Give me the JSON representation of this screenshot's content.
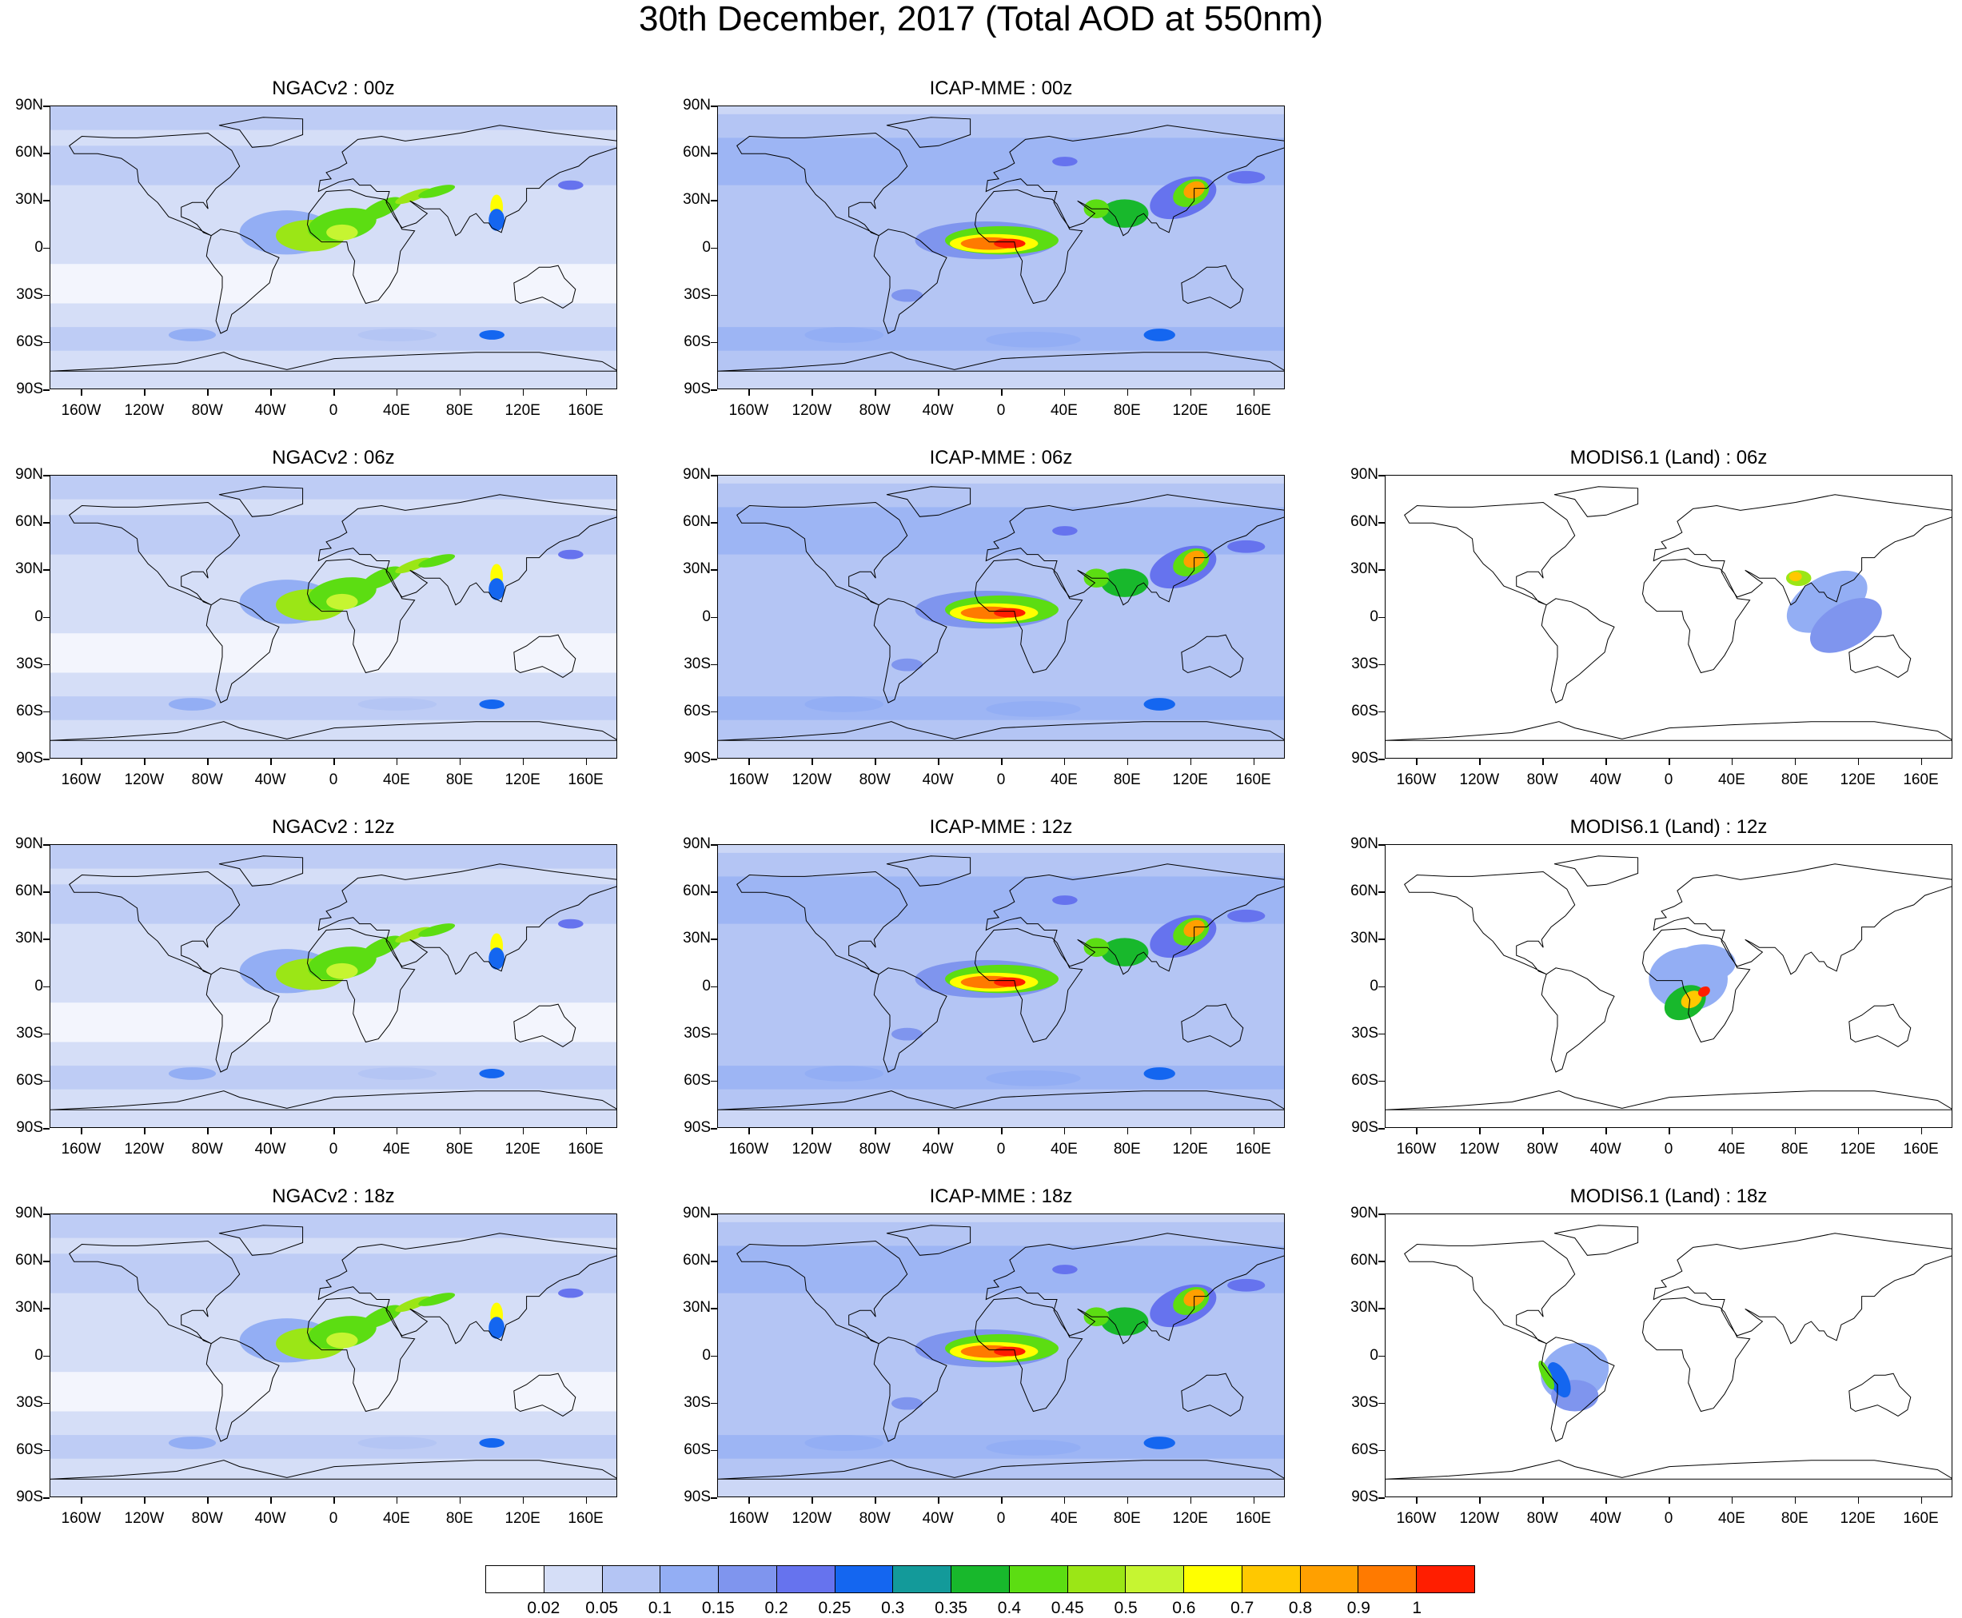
{
  "title": "30th December, 2017 (Total AOD at 550nm)",
  "lat_labels": [
    "90N",
    "60N",
    "30N",
    "0",
    "30S",
    "60S",
    "90S"
  ],
  "lon_labels": [
    "160W",
    "120W",
    "80W",
    "40W",
    "0",
    "40E",
    "80E",
    "120E",
    "160E"
  ],
  "panels": [
    {
      "id": "ngac-00",
      "title": "NGACv2 : 00z",
      "model": "ngac",
      "hour": "00"
    },
    {
      "id": "icap-00",
      "title": "ICAP-MME : 00z",
      "model": "icap",
      "hour": "00"
    },
    {
      "id": "ngac-06",
      "title": "NGACv2 : 06z",
      "model": "ngac",
      "hour": "06"
    },
    {
      "id": "icap-06",
      "title": "ICAP-MME : 06z",
      "model": "icap",
      "hour": "06"
    },
    {
      "id": "modis-06",
      "title": "MODIS6.1 (Land) : 06z",
      "model": "modis",
      "hour": "06"
    },
    {
      "id": "ngac-12",
      "title": "NGACv2 : 12z",
      "model": "ngac",
      "hour": "12"
    },
    {
      "id": "icap-12",
      "title": "ICAP-MME : 12z",
      "model": "icap",
      "hour": "12"
    },
    {
      "id": "modis-12",
      "title": "MODIS6.1 (Land) : 12z",
      "model": "modis",
      "hour": "12"
    },
    {
      "id": "ngac-18",
      "title": "NGACv2 : 18z",
      "model": "ngac",
      "hour": "18"
    },
    {
      "id": "icap-18",
      "title": "ICAP-MME : 18z",
      "model": "icap",
      "hour": "18"
    },
    {
      "id": "modis-18",
      "title": "MODIS6.1 (Land) : 18z",
      "model": "modis",
      "hour": "18"
    }
  ],
  "colorbar": {
    "labels": [
      "0.02",
      "0.05",
      "0.1",
      "0.15",
      "0.2",
      "0.25",
      "0.3",
      "0.35",
      "0.4",
      "0.45",
      "0.5",
      "0.6",
      "0.7",
      "0.8",
      "0.9",
      "1"
    ],
    "colors": [
      "#ffffff",
      "#d5def7",
      "#b4c5f4",
      "#93aef4",
      "#7f95ee",
      "#6673ee",
      "#1466f0",
      "#139a9a",
      "#18b82c",
      "#5cdd12",
      "#9be616",
      "#c6f531",
      "#ffff00",
      "#ffc800",
      "#ffa000",
      "#ff7a00",
      "#ff1e00"
    ]
  }
}
